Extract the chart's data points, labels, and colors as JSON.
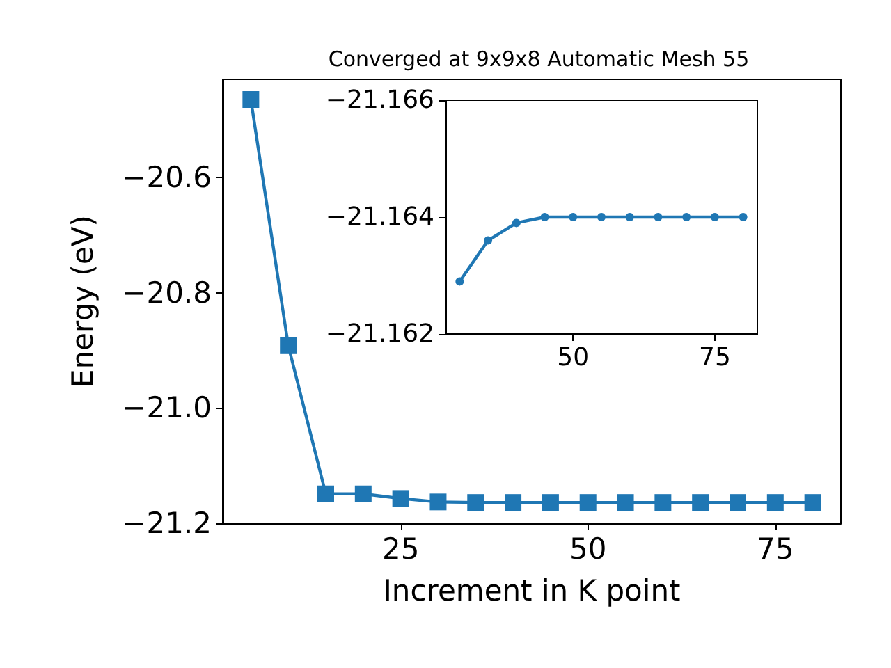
{
  "chart_data": [
    {
      "type": "line",
      "title": "Converged at 9x9x8 Automatic Mesh 55",
      "xlabel": "Increment in K point",
      "ylabel": "Energy (eV)",
      "x": [
        5,
        10,
        15,
        20,
        25,
        30,
        35,
        40,
        45,
        50,
        55,
        60,
        65,
        70,
        75,
        80
      ],
      "series": [
        {
          "color": "#1f77b4",
          "values": [
            -20.465,
            -20.892,
            -21.149,
            -21.149,
            -21.157,
            -21.163,
            -21.164,
            -21.164,
            -21.164,
            -21.164,
            -21.164,
            -21.164,
            -21.164,
            -21.164,
            -21.164,
            -21.164
          ]
        }
      ],
      "xlim": [
        1.25,
        83.75
      ],
      "ylim": [
        -21.2,
        -20.43
      ],
      "xticks": [
        25,
        50,
        75
      ],
      "yticks": [
        {
          "value": -21.2,
          "label": "−21.2"
        },
        {
          "value": -21.0,
          "label": "−21.0"
        },
        {
          "value": -20.8,
          "label": "−20.8"
        },
        {
          "value": -20.6,
          "label": "−20.6"
        }
      ],
      "marker": "square",
      "legend": false,
      "grid": false
    },
    {
      "type": "line",
      "x": [
        30,
        35,
        40,
        45,
        50,
        55,
        60,
        65,
        70,
        75,
        80
      ],
      "series": [
        {
          "color": "#1f77b4",
          "values": [
            -21.1629,
            -21.1636,
            -21.1639,
            -21.164,
            -21.164,
            -21.164,
            -21.164,
            -21.164,
            -21.164,
            -21.164,
            -21.164
          ]
        }
      ],
      "xlim": [
        27.5,
        82.5
      ],
      "ylim": [
        -21.162,
        -21.166
      ],
      "xticks": [
        50,
        75
      ],
      "yticks": [
        {
          "value": -21.166,
          "label": "−21.166"
        },
        {
          "value": -21.164,
          "label": "−21.164"
        },
        {
          "value": -21.162,
          "label": "−21.162"
        }
      ],
      "marker": "circle",
      "legend": false,
      "grid": false
    }
  ]
}
